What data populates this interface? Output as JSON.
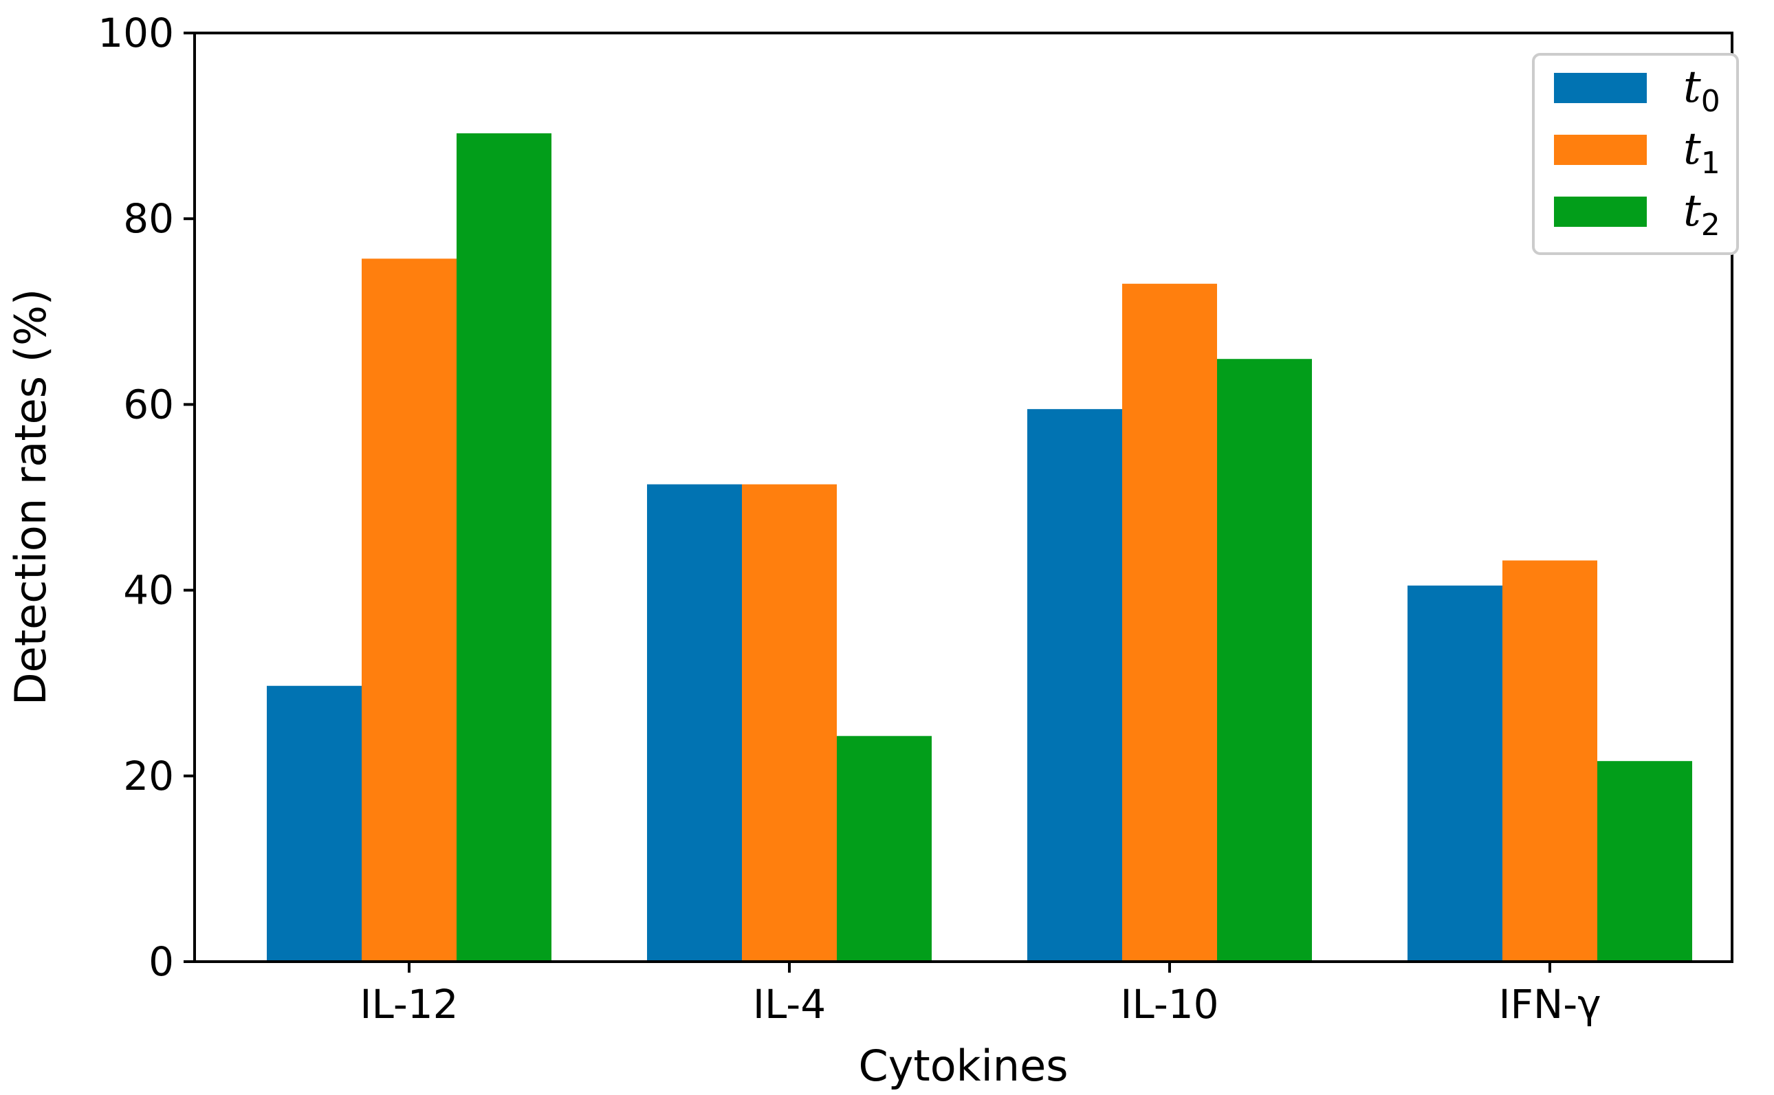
{
  "chart_data": {
    "type": "bar",
    "title": "",
    "xlabel": "Cytokines",
    "ylabel": "Detection rates (%)",
    "categories": [
      "IL-12",
      "IL-4",
      "IL-10",
      "IFN-γ"
    ],
    "ylim": [
      0,
      100
    ],
    "yticks": [
      0,
      20,
      40,
      60,
      80,
      100
    ],
    "grid": false,
    "legend_position": "top-right",
    "series": [
      {
        "name": "t",
        "subscript": "0",
        "color": "#0173b2",
        "values": [
          29.7,
          51.4,
          59.5,
          40.5
        ]
      },
      {
        "name": "t",
        "subscript": "1",
        "color": "#ff7f0e",
        "values": [
          75.7,
          51.4,
          73.0,
          43.2
        ]
      },
      {
        "name": "t",
        "subscript": "2",
        "color": "#029e1a",
        "values": [
          89.2,
          24.3,
          64.9,
          21.6
        ]
      }
    ]
  }
}
